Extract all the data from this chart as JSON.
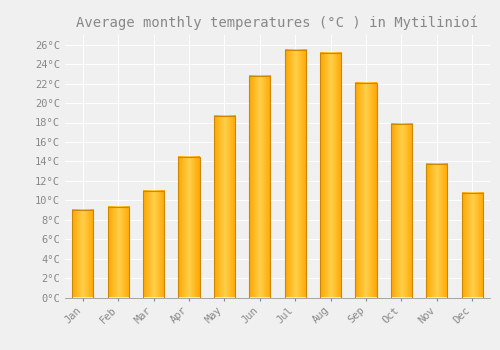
{
  "title": "Average monthly temperatures (°C ) in Mytilinioí",
  "months": [
    "Jan",
    "Feb",
    "Mar",
    "Apr",
    "May",
    "Jun",
    "Jul",
    "Aug",
    "Sep",
    "Oct",
    "Nov",
    "Dec"
  ],
  "values": [
    9.0,
    9.3,
    11.0,
    14.5,
    18.7,
    22.8,
    25.5,
    25.2,
    22.1,
    17.8,
    13.7,
    10.8
  ],
  "bar_color_light": "#FFD04A",
  "bar_color_dark": "#FFA500",
  "bar_edge_color": "#CC8800",
  "ylim": [
    0,
    27
  ],
  "yticks": [
    0,
    2,
    4,
    6,
    8,
    10,
    12,
    14,
    16,
    18,
    20,
    22,
    24,
    26
  ],
  "background_color": "#f0f0f0",
  "grid_color": "#ffffff",
  "title_fontsize": 10,
  "tick_fontsize": 7.5,
  "font_color": "#888888"
}
